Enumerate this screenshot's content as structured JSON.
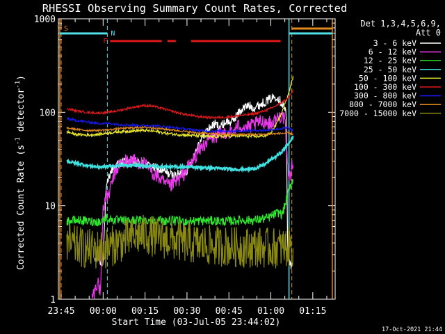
{
  "chart_data": {
    "type": "line",
    "title": "RHESSI Observing Summary Count Rates, Corrected",
    "xlabel": "Start Time (03-Jul-05 23:44:02)",
    "ylabel_main": "Corrected Count Rate (s",
    "ylabel_sup1": "-1",
    "ylabel_mid": " detector",
    "ylabel_sup2": "-1",
    "ylabel_end": ")",
    "y_scale": "log",
    "ylim": [
      1,
      1000
    ],
    "xlim_minutes": [
      0,
      99
    ],
    "y_ticks": [
      {
        "value": 1,
        "label": "1"
      },
      {
        "value": 10,
        "label": "10"
      },
      {
        "value": 100,
        "label": "100"
      },
      {
        "value": 1000,
        "label": "1000"
      }
    ],
    "x_ticks": [
      {
        "minute": 1,
        "label": "23:45"
      },
      {
        "minute": 16,
        "label": "00:00"
      },
      {
        "minute": 31,
        "label": "00:15"
      },
      {
        "minute": 46,
        "label": "00:30"
      },
      {
        "minute": 61,
        "label": "00:45"
      },
      {
        "minute": 76,
        "label": "01:00"
      },
      {
        "minute": 91,
        "label": "01:15"
      }
    ],
    "legend_header": [
      "Det 1,3,4,5,6,9,",
      "Att 0"
    ],
    "legend_position": "right",
    "footer_timestamp": "17-Oct-2021 21:44",
    "flags": {
      "saa_label": "S",
      "night_label": "N",
      "flare_label": "F",
      "saa_color": "#e38a1e",
      "night_color": "#4fe0e8",
      "flare_color": "#e01818",
      "saa_lines_minutes": [
        0.5,
        98
      ],
      "saa_dashed_minutes": [
        1.0,
        83.5
      ],
      "night_lines_minutes": [
        82.5
      ],
      "night_dashed_minutes": [
        17.5
      ],
      "saa_bar_minutes": [
        83.5,
        98
      ],
      "night_bars_minutes": [
        [
          0.5,
          17.5
        ],
        [
          82.5,
          98
        ]
      ],
      "flare_segments_minutes": [
        [
          18.5,
          37
        ],
        [
          39,
          42
        ],
        [
          47.5,
          79.5
        ]
      ]
    },
    "series": [
      {
        "name": "3 - 6 keV",
        "color": "#ffffff",
        "noise": 0.05,
        "x": [
          13,
          14,
          15,
          15.5,
          16,
          17,
          18,
          19,
          20,
          22,
          24,
          26,
          28,
          30,
          32,
          35,
          38,
          41,
          44,
          46,
          48,
          50,
          52,
          54,
          56,
          58,
          60,
          62,
          64,
          66,
          68,
          70,
          72,
          74,
          76,
          78,
          80,
          81,
          81.5,
          82,
          83,
          83.8,
          84
        ],
        "values": [
          2.5,
          2.8,
          2.6,
          2.3,
          2.7,
          14,
          20,
          24,
          26,
          29,
          30,
          30,
          29,
          28,
          27,
          25,
          23,
          21,
          22,
          24,
          32,
          45,
          58,
          68,
          75,
          70,
          80,
          78,
          95,
          110,
          118,
          112,
          120,
          130,
          140,
          150,
          125,
          110,
          90,
          3.5,
          2.3,
          2.2,
          2.4
        ]
      },
      {
        "name": "6 - 12 keV",
        "color": "#e838e8",
        "noise": 0.08,
        "x": [
          12,
          13,
          14,
          15,
          16,
          17,
          18,
          20,
          22,
          24,
          26,
          28,
          30,
          32,
          34,
          36,
          38,
          40,
          42,
          44,
          46,
          48,
          50,
          52,
          54,
          56,
          58,
          60,
          62,
          64,
          66,
          68,
          70,
          72,
          74,
          76,
          78,
          80,
          81,
          82,
          83,
          84
        ],
        "values": [
          1.05,
          1.2,
          1.6,
          1.15,
          10,
          12,
          13,
          22,
          28,
          30,
          31,
          30,
          28,
          26,
          22,
          20,
          17,
          16,
          18,
          20,
          25,
          30,
          38,
          45,
          52,
          55,
          58,
          62,
          60,
          70,
          72,
          68,
          74,
          78,
          80,
          75,
          85,
          95,
          80,
          25,
          20,
          32
        ]
      },
      {
        "name": "12 - 25 keV",
        "color": "#2ee82e",
        "noise": 0.05,
        "x": [
          3,
          5,
          7,
          9,
          11,
          13,
          15,
          17,
          19,
          22,
          25,
          30,
          35,
          40,
          45,
          50,
          55,
          60,
          65,
          70,
          75,
          77,
          79,
          80,
          81,
          82,
          83,
          84
        ],
        "values": [
          6.8,
          6.9,
          7.0,
          6.9,
          6.8,
          6.8,
          6.7,
          7.4,
          7.1,
          6.9,
          6.9,
          7.0,
          7.0,
          6.9,
          6.8,
          6.9,
          6.9,
          6.8,
          7.0,
          7.0,
          7.4,
          8.0,
          8.5,
          8.0,
          10,
          13,
          16,
          20
        ]
      },
      {
        "name": "25 - 50 keV",
        "color": "#3fe0e0",
        "noise": 0.015,
        "x": [
          3,
          5,
          8,
          10,
          12,
          14,
          16,
          18,
          22,
          28,
          34,
          40,
          46,
          52,
          58,
          64,
          68,
          70,
          72,
          74,
          76,
          78,
          80,
          82,
          84
        ],
        "values": [
          30,
          29,
          28,
          27,
          26.5,
          26,
          26,
          26.5,
          27,
          27,
          26.5,
          26,
          26,
          25.5,
          25,
          24.5,
          24.5,
          25,
          26,
          28,
          31,
          34,
          38,
          45,
          55
        ]
      },
      {
        "name": "50 - 100 keV",
        "color": "#e8e82e",
        "noise": 0.015,
        "x": [
          3,
          6,
          10,
          14,
          18,
          22,
          26,
          30,
          34,
          38,
          42,
          46,
          50,
          54,
          58,
          62,
          66,
          70,
          74,
          76,
          78,
          80,
          82,
          84
        ],
        "values": [
          62,
          58,
          57,
          58,
          60,
          62,
          63,
          64,
          63,
          60,
          58,
          57,
          56,
          55,
          55,
          56,
          56,
          55,
          56,
          60,
          75,
          100,
          150,
          240
        ]
      },
      {
        "name": "100 - 300 keV",
        "color": "#e01818",
        "noise": 0.012,
        "x": [
          3,
          6,
          10,
          14,
          18,
          22,
          26,
          30,
          34,
          38,
          42,
          46,
          50,
          54,
          58,
          62,
          66,
          70,
          74,
          76,
          78,
          80,
          82,
          84
        ],
        "values": [
          110,
          104,
          100,
          98,
          100,
          105,
          112,
          118,
          116,
          108,
          100,
          94,
          90,
          88,
          88,
          90,
          93,
          96,
          104,
          110,
          118,
          128,
          140,
          170
        ]
      },
      {
        "name": "300 - 800 keV",
        "color": "#1818e8",
        "noise": 0.012,
        "x": [
          3,
          6,
          10,
          14,
          18,
          22,
          26,
          30,
          34,
          38,
          42,
          46,
          50,
          54,
          58,
          62,
          66,
          70,
          74,
          78,
          82,
          84
        ],
        "values": [
          86,
          82,
          79,
          76,
          76,
          74,
          73,
          72,
          72,
          70,
          68,
          66,
          64,
          63,
          63,
          63,
          63,
          64,
          64,
          66,
          68,
          64
        ]
      },
      {
        "name": "800 - 7000 keV",
        "color": "#e38a1e",
        "noise": 0.01,
        "x": [
          3,
          6,
          10,
          14,
          18,
          22,
          26,
          30,
          34,
          38,
          42,
          46,
          50,
          54,
          58,
          62,
          66,
          70,
          74,
          78,
          82,
          84
        ],
        "values": [
          68,
          66,
          64,
          64,
          65,
          67,
          68,
          69,
          68,
          66,
          64,
          62,
          60,
          59,
          58,
          58,
          58,
          58,
          58,
          59,
          60,
          58
        ]
      },
      {
        "name": "7000 - 15000 keV",
        "color": "#8a8a12",
        "noise": 0.22,
        "x": [
          3,
          8,
          12,
          16,
          20,
          24,
          28,
          32,
          36,
          40,
          44,
          48,
          52,
          56,
          60,
          64,
          68,
          72,
          76,
          80,
          84
        ],
        "values": [
          3.9,
          3.6,
          3.4,
          3.4,
          3.8,
          4.3,
          4.8,
          4.9,
          4.5,
          4.3,
          4.1,
          3.9,
          3.8,
          3.7,
          3.7,
          3.6,
          3.6,
          3.6,
          3.5,
          3.6,
          3.6
        ]
      }
    ]
  }
}
